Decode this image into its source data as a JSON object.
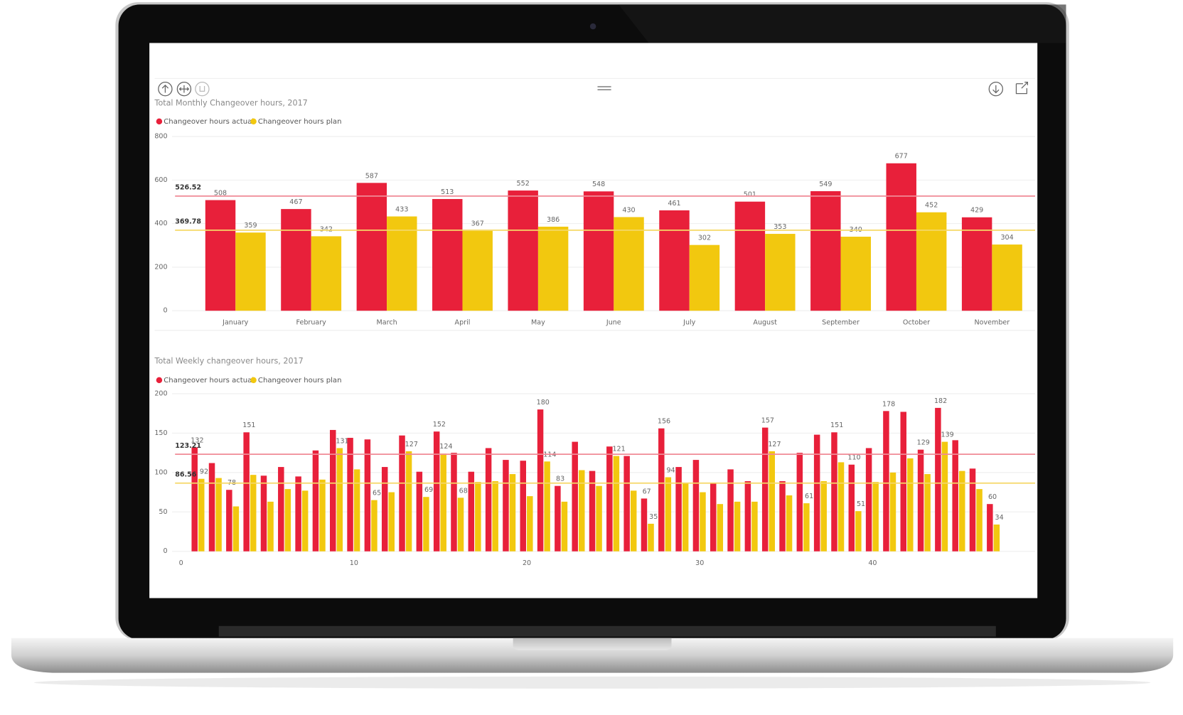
{
  "chart_data": [
    {
      "type": "bar",
      "title": "Total Monthly Changeover hours, 2017",
      "categories": [
        "January",
        "February",
        "March",
        "April",
        "May",
        "June",
        "July",
        "August",
        "September",
        "October",
        "November"
      ],
      "series": [
        {
          "name": "Changeover hours actual",
          "color": "#e8203a",
          "values": [
            508,
            467,
            587,
            513,
            552,
            548,
            461,
            501,
            549,
            677,
            429
          ]
        },
        {
          "name": "Changeover hours plan",
          "color": "#f2c80f",
          "values": [
            359,
            342,
            433,
            367,
            386,
            430,
            302,
            353,
            340,
            452,
            304
          ]
        }
      ],
      "reference_lines": [
        {
          "value": 526.52,
          "color": "#f08a96"
        },
        {
          "value": 369.78,
          "color": "#f5d867"
        }
      ],
      "ylim": [
        0,
        800
      ],
      "yticks": [
        0,
        200,
        400,
        600,
        800
      ],
      "grid": true
    },
    {
      "type": "bar",
      "title": "Total Weekly changeover hours, 2017",
      "x": [
        1,
        2,
        3,
        4,
        5,
        6,
        7,
        8,
        9,
        10,
        11,
        12,
        13,
        14,
        15,
        16,
        17,
        18,
        19,
        20,
        21,
        22,
        23,
        24,
        25,
        26,
        27,
        28,
        29,
        30,
        31,
        32,
        33,
        34,
        35,
        36,
        37,
        38,
        39,
        40,
        41,
        42,
        43,
        44,
        45,
        46,
        47
      ],
      "series": [
        {
          "name": "Changeover hours actual",
          "color": "#e8203a",
          "values": [
            132,
            112,
            78,
            151,
            96,
            107,
            95,
            128,
            154,
            144,
            142,
            107,
            147,
            101,
            152,
            125,
            101,
            131,
            116,
            115,
            180,
            83,
            139,
            102,
            133,
            121,
            67,
            156,
            107,
            116,
            87,
            104,
            89,
            157,
            89,
            125,
            148,
            151,
            110,
            131,
            178,
            177,
            129,
            182,
            141,
            105,
            60
          ],
          "value_labels": [
            "132",
            null,
            "78",
            "151",
            null,
            null,
            null,
            null,
            null,
            null,
            null,
            null,
            null,
            null,
            "152",
            null,
            null,
            null,
            null,
            null,
            "180",
            "83",
            null,
            null,
            null,
            null,
            "67",
            "156",
            null,
            null,
            null,
            null,
            null,
            "157",
            null,
            null,
            null,
            "151",
            "110",
            null,
            "178",
            null,
            "129",
            "182",
            null,
            null,
            "60"
          ]
        },
        {
          "name": "Changeover hours plan",
          "color": "#f2c80f",
          "values": [
            92,
            93,
            57,
            97,
            63,
            79,
            77,
            91,
            131,
            104,
            65,
            75,
            127,
            69,
            124,
            68,
            88,
            89,
            98,
            70,
            114,
            63,
            103,
            83,
            121,
            77,
            35,
            94,
            86,
            75,
            60,
            63,
            63,
            127,
            71,
            61,
            89,
            113,
            51,
            88,
            100,
            118,
            98,
            139,
            102,
            79,
            34
          ],
          "value_labels": [
            "92",
            null,
            null,
            null,
            null,
            null,
            null,
            null,
            "131",
            null,
            "65",
            null,
            "127",
            "69",
            "124",
            "68",
            null,
            null,
            null,
            null,
            "114",
            null,
            null,
            null,
            "121",
            null,
            "35",
            "94",
            null,
            null,
            null,
            null,
            null,
            "127",
            null,
            "61",
            null,
            null,
            "51",
            null,
            null,
            null,
            null,
            "139",
            null,
            null,
            "34"
          ]
        }
      ],
      "reference_lines": [
        {
          "value": 123.21,
          "color": "#f08a96"
        },
        {
          "value": 86.56,
          "color": "#f5d867"
        }
      ],
      "xlim": [
        0,
        49.4
      ],
      "xticks": [
        0,
        10,
        20,
        30,
        40
      ],
      "ylim": [
        0,
        200
      ],
      "yticks": [
        0,
        50,
        100,
        150,
        200
      ],
      "grid": true
    }
  ]
}
